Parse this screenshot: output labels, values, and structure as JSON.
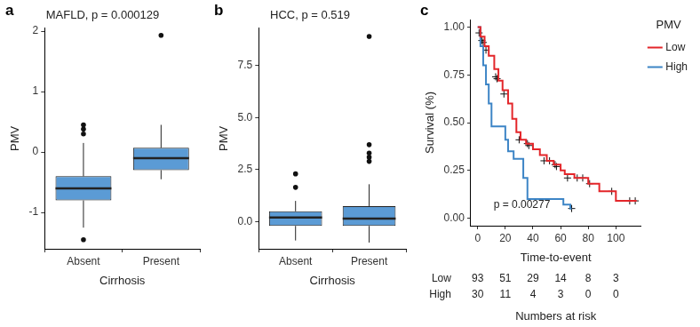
{
  "chart_data": [
    {
      "type": "box",
      "panel": "a",
      "title": "MAFLD, p = 0.000129",
      "x_label": "Cirrhosis",
      "y_label": "PMV",
      "categories": [
        "Absent",
        "Present"
      ],
      "color": "#5b9bd5",
      "boxes": [
        {
          "whisker_low": -1.25,
          "q1": -0.8,
          "median": -0.6,
          "q3": -0.4,
          "whisker_high": 0.15,
          "outliers": [
            0.3,
            0.38,
            0.45,
            -1.45
          ]
        },
        {
          "whisker_low": -0.45,
          "q1": -0.3,
          "median": -0.1,
          "q3": 0.07,
          "whisker_high": 0.45,
          "outliers": [
            1.93
          ]
        }
      ],
      "ylim": [
        -1.6,
        2.05
      ],
      "yticks": [
        -1,
        0,
        1,
        2
      ],
      "grid": false
    },
    {
      "type": "box",
      "panel": "b",
      "title": "HCC, p = 0.519",
      "x_label": "Cirrhosis",
      "y_label": "PMV",
      "categories": [
        "Absent",
        "Present"
      ],
      "color": "#5b9bd5",
      "boxes": [
        {
          "whisker_low": -0.9,
          "q1": -0.2,
          "median": 0.2,
          "q3": 0.5,
          "whisker_high": 1.0,
          "outliers": [
            1.65,
            2.3
          ]
        },
        {
          "whisker_low": -1.0,
          "q1": -0.2,
          "median": 0.15,
          "q3": 0.75,
          "whisker_high": 1.8,
          "outliers": [
            2.9,
            3.1,
            3.3,
            3.7,
            8.9
          ]
        }
      ],
      "ylim": [
        -1.3,
        9.3
      ],
      "yticks": [
        {
          "value": 0,
          "label": "0.0"
        },
        {
          "value": 2.5,
          "label": "2.5"
        },
        {
          "value": 5,
          "label": "5.0"
        },
        {
          "value": 7.5,
          "label": "7.5"
        }
      ],
      "grid": false
    },
    {
      "type": "survival",
      "panel": "c",
      "x_label": "Time-to-event",
      "y_label": "Survival (%)",
      "legend": "right",
      "legend_title": "PMV",
      "grid": false,
      "series": [
        {
          "name": "Low",
          "color": "#e3262a",
          "x": [
            0,
            2,
            5,
            8,
            12,
            15,
            18,
            22,
            25,
            28,
            31,
            35,
            40,
            45,
            50,
            55,
            60,
            63,
            70,
            80,
            88,
            100,
            115
          ],
          "values": [
            1.0,
            0.95,
            0.9,
            0.85,
            0.78,
            0.72,
            0.67,
            0.6,
            0.52,
            0.45,
            0.41,
            0.39,
            0.36,
            0.33,
            0.3,
            0.28,
            0.25,
            0.23,
            0.21,
            0.18,
            0.14,
            0.09,
            0.09
          ],
          "censored": {
            "x": [
              1,
              3,
              4,
              6,
              13,
              14,
              19,
              30,
              36,
              37,
              48,
              52,
              56,
              57,
              65,
              72,
              76,
              81,
              97,
              110,
              114
            ],
            "values": [
              0.97,
              0.93,
              0.92,
              0.88,
              0.74,
              0.73,
              0.65,
              0.41,
              0.39,
              0.38,
              0.3,
              0.3,
              0.28,
              0.27,
              0.21,
              0.21,
              0.21,
              0.18,
              0.14,
              0.09,
              0.09
            ]
          }
        },
        {
          "name": "High",
          "color": "#3d85c6",
          "x": [
            0,
            2,
            4,
            6,
            8,
            10,
            20,
            22,
            26,
            33,
            36,
            55,
            62,
            67,
            68
          ],
          "values": [
            1.0,
            0.9,
            0.8,
            0.7,
            0.6,
            0.48,
            0.41,
            0.35,
            0.31,
            0.21,
            0.1,
            0.1,
            0.07,
            0.05,
            0.05
          ],
          "censored": {
            "x": [
              68
            ],
            "values": [
              0.05
            ]
          }
        }
      ],
      "annotations": [
        {
          "text": "p = 0.00277",
          "x": 32,
          "y": 0.07
        }
      ],
      "risk_table": {
        "title": "Numbers at risk",
        "times": [
          0,
          20,
          40,
          60,
          80,
          100
        ],
        "rows": [
          {
            "name": "Low",
            "values": [
              93,
              51,
              29,
              14,
              8,
              3
            ]
          },
          {
            "name": "High",
            "values": [
              30,
              11,
              4,
              3,
              0,
              0
            ]
          }
        ]
      },
      "xlim": [
        -5,
        118
      ],
      "xticks": [
        0,
        20,
        40,
        60,
        80,
        100
      ],
      "ylim": [
        -0.04,
        1.04
      ],
      "yticks": [
        {
          "value": 0,
          "label": "0.00"
        },
        {
          "value": 0.25,
          "label": "0.25"
        },
        {
          "value": 0.5,
          "label": "0.50"
        },
        {
          "value": 0.75,
          "label": "0.75"
        },
        {
          "value": 1,
          "label": "1.00"
        }
      ]
    }
  ]
}
